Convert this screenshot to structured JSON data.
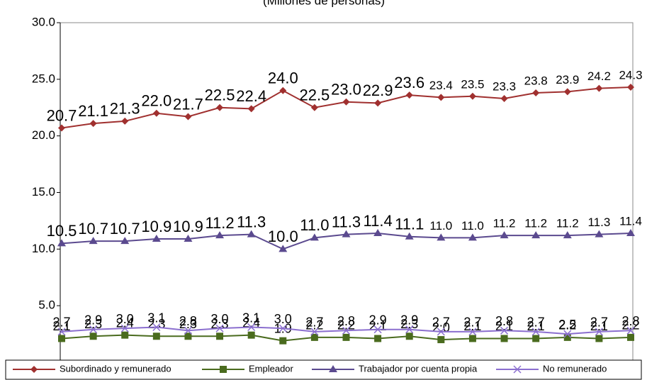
{
  "chart_data": {
    "type": "line",
    "title": "(Millones de personas)",
    "ylim": [
      0,
      30
    ],
    "yticks": [
      {
        "value": 5,
        "label": "5.0"
      },
      {
        "value": 10,
        "label": "10.0"
      },
      {
        "value": 15,
        "label": "15.0"
      },
      {
        "value": 20,
        "label": "20.0"
      },
      {
        "value": 25,
        "label": "25.0"
      },
      {
        "value": 30,
        "label": "30.0"
      }
    ],
    "grid": false,
    "legend": "bottom",
    "series": [
      {
        "name": "Subordinado y remunerado",
        "color": "#a0302f",
        "marker": "diamond",
        "values": [
          20.7,
          21.1,
          21.3,
          22.0,
          21.7,
          22.5,
          22.4,
          24.0,
          22.5,
          23.0,
          22.9,
          23.6,
          23.4,
          23.5,
          23.3,
          23.8,
          23.9,
          24.2,
          24.3
        ],
        "value_labels": [
          "20.7",
          "21.1",
          "21.3",
          "22.0",
          "21.7",
          "22.5",
          "22.4",
          "24.0",
          "22.5",
          "23.0",
          "22.9",
          "23.6",
          "23.4",
          "23.5",
          "23.3",
          "23.8",
          "23.9",
          "24.2",
          "24.3"
        ]
      },
      {
        "name": "Empleador",
        "color": "#4a6b1e",
        "marker": "square",
        "values": [
          2.1,
          2.3,
          2.4,
          2.3,
          2.3,
          2.3,
          2.4,
          1.9,
          2.2,
          2.2,
          2.1,
          2.3,
          2.0,
          2.1,
          2.1,
          2.1,
          2.2,
          2.1,
          2.2
        ],
        "value_labels": [
          "2.1",
          "2.3",
          "2.4",
          "2.3",
          "2.3",
          "2.3",
          "2.4",
          "1.9",
          "2.2",
          "2.2",
          "2.1",
          "2.3",
          "2.0",
          "2.1",
          "2.1",
          "2.1",
          "2.2",
          "2.1",
          "2.2"
        ]
      },
      {
        "name": "Trabajador por cuenta propia",
        "color": "#5b4a8f",
        "marker": "triangle",
        "values": [
          10.5,
          10.7,
          10.7,
          10.9,
          10.9,
          11.2,
          11.3,
          10.0,
          11.0,
          11.3,
          11.4,
          11.1,
          11.0,
          11.0,
          11.2,
          11.2,
          11.2,
          11.3,
          11.4
        ],
        "value_labels": [
          "10.5",
          "10.7",
          "10.7",
          "10.9",
          "10.9",
          "11.2",
          "11.3",
          "10.0",
          "11.0",
          "11.3",
          "11.4",
          "11.1",
          "11.0",
          "11.0",
          "11.2",
          "11.2",
          "11.2",
          "11.3",
          "11.4"
        ]
      },
      {
        "name": "No remunerado",
        "color": "#8b6fcf",
        "marker": "x",
        "values": [
          2.7,
          2.9,
          3.0,
          3.1,
          2.8,
          3.0,
          3.1,
          3.0,
          2.7,
          2.8,
          2.9,
          2.9,
          2.7,
          2.7,
          2.8,
          2.7,
          2.5,
          2.7,
          2.8
        ],
        "value_labels": [
          "2.7",
          "2.9",
          "3.0",
          "3.1",
          "2.8",
          "3.0",
          "3.1",
          "3.0",
          "2.7",
          "2.8",
          "2.9",
          "2.9",
          "2.7",
          "2.7",
          "2.8",
          "2.7",
          "2.5",
          "2.7",
          "2.8"
        ]
      }
    ]
  }
}
